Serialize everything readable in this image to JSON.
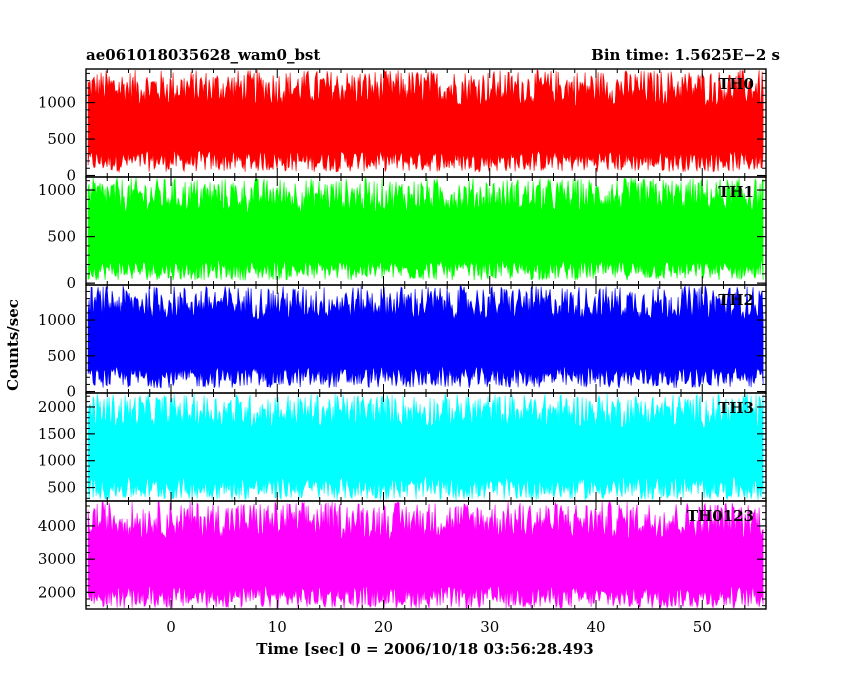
{
  "header": {
    "title": "ae061018035628_wam0_bst",
    "bin_time": "Bin time: 1.5625E−2 s"
  },
  "chart_data": {
    "type": "line",
    "xlabel": "Time [sec] 0 = 2006/10/18 03:56:28.493",
    "ylabel": "Counts/sec",
    "xlim": [
      -8,
      56
    ],
    "x_data_range": [
      -7.8,
      55.8
    ],
    "xticks": [
      0,
      10,
      20,
      30,
      40,
      50
    ],
    "grid": false,
    "panels": [
      {
        "name": "TH0",
        "color": "#ff0000",
        "ylim": [
          -20,
          1460
        ],
        "yticks": [
          0,
          500,
          1000
        ],
        "envelope": {
          "low": [
            50,
            350
          ],
          "high": [
            950,
            1450
          ],
          "center": 700
        }
      },
      {
        "name": "TH1",
        "color": "#00ff00",
        "ylim": [
          -20,
          1140
        ],
        "yticks": [
          0,
          500,
          1000
        ],
        "envelope": {
          "low": [
            30,
            250
          ],
          "high": [
            750,
            1130
          ],
          "center": 500
        }
      },
      {
        "name": "TH2",
        "color": "#0000ff",
        "ylim": [
          -20,
          1490
        ],
        "yticks": [
          0,
          500,
          1000
        ],
        "envelope": {
          "low": [
            50,
            350
          ],
          "high": [
            1000,
            1480
          ],
          "center": 700
        }
      },
      {
        "name": "TH3",
        "color": "#00ffff",
        "ylim": [
          250,
          2260
        ],
        "yticks": [
          500,
          1000,
          1500,
          2000
        ],
        "envelope": {
          "low": [
            270,
            700
          ],
          "high": [
            1600,
            2250
          ],
          "center": 1200
        }
      },
      {
        "name": "TH0123",
        "color": "#ff00ff",
        "ylim": [
          1500,
          4750
        ],
        "yticks": [
          2000,
          3000,
          4000
        ],
        "envelope": {
          "low": [
            1510,
            2200
          ],
          "high": [
            3600,
            4740
          ],
          "center": 3000
        }
      }
    ]
  }
}
